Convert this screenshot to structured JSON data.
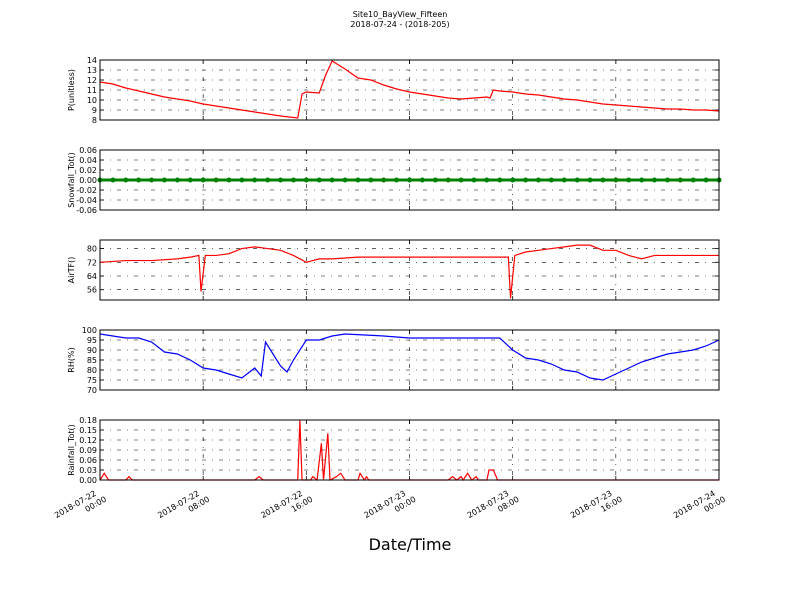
{
  "chart_data": [
    {
      "type": "line",
      "title": "Site10_BayView_Fifteen",
      "subtitle": "2018-07-24 - (2018-205)",
      "ylabel": "P(unitless)",
      "color": "#ff0000",
      "grid": true,
      "ylim": [
        8,
        14
      ],
      "yticks": [
        8,
        9,
        10,
        11,
        12,
        13,
        14
      ],
      "x": [
        "2018-07-22 00:00",
        "2018-07-22 01:00",
        "2018-07-22 02:00",
        "2018-07-22 03:00",
        "2018-07-22 04:00",
        "2018-07-22 05:00",
        "2018-07-22 06:00",
        "2018-07-22 07:00",
        "2018-07-22 08:00",
        "2018-07-22 09:00",
        "2018-07-22 10:00",
        "2018-07-22 11:00",
        "2018-07-22 12:00",
        "2018-07-22 13:00",
        "2018-07-22 14:00",
        "2018-07-22 15:20",
        "2018-07-22 15:40",
        "2018-07-22 16:00",
        "2018-07-22 17:00",
        "2018-07-22 17:30",
        "2018-07-22 18:00",
        "2018-07-22 19:00",
        "2018-07-22 20:00",
        "2018-07-22 21:00",
        "2018-07-22 22:00",
        "2018-07-22 23:00",
        "2018-07-23 00:00",
        "2018-07-23 01:00",
        "2018-07-23 02:00",
        "2018-07-23 03:00",
        "2018-07-23 04:00",
        "2018-07-23 05:00",
        "2018-07-23 06:00",
        "2018-07-23 06:15",
        "2018-07-23 06:30",
        "2018-07-23 07:00",
        "2018-07-23 08:00",
        "2018-07-23 09:00",
        "2018-07-23 10:00",
        "2018-07-23 11:00",
        "2018-07-23 12:00",
        "2018-07-23 13:00",
        "2018-07-23 14:00",
        "2018-07-23 15:00",
        "2018-07-23 16:00",
        "2018-07-23 17:00",
        "2018-07-23 18:00",
        "2018-07-23 19:00",
        "2018-07-23 20:00",
        "2018-07-23 21:00",
        "2018-07-23 22:00",
        "2018-07-23 23:00",
        "2018-07-24 00:00"
      ],
      "values": [
        11.8,
        11.6,
        11.2,
        10.9,
        10.6,
        10.3,
        10.1,
        9.9,
        9.6,
        9.4,
        9.2,
        9.0,
        8.8,
        8.6,
        8.4,
        8.2,
        10.6,
        10.8,
        10.7,
        12.5,
        13.9,
        13.1,
        12.2,
        12.0,
        11.5,
        11.1,
        10.8,
        10.6,
        10.4,
        10.2,
        10.1,
        10.2,
        10.3,
        10.2,
        11.0,
        10.9,
        10.8,
        10.6,
        10.5,
        10.3,
        10.1,
        10.0,
        9.8,
        9.6,
        9.5,
        9.4,
        9.3,
        9.2,
        9.1,
        9.1,
        9.0,
        9.0,
        8.9
      ]
    },
    {
      "type": "line",
      "ylabel": "Snowfall_Tot()",
      "color": "#008000",
      "marker": true,
      "grid": true,
      "ylim": [
        -0.06,
        0.06
      ],
      "yticks": [
        -0.06,
        -0.04,
        -0.02,
        {
          "value": 0,
          "label": "0.00"
        },
        0.02,
        0.04,
        0.06
      ],
      "x": [
        "2018-07-22 00:00",
        "2018-07-22 01:00",
        "2018-07-22 02:00",
        "2018-07-22 03:00",
        "2018-07-22 04:00",
        "2018-07-22 05:00",
        "2018-07-22 06:00",
        "2018-07-22 07:00",
        "2018-07-22 08:00",
        "2018-07-22 09:00",
        "2018-07-22 10:00",
        "2018-07-22 11:00",
        "2018-07-22 12:00",
        "2018-07-22 13:00",
        "2018-07-22 14:00",
        "2018-07-22 15:00",
        "2018-07-22 16:00",
        "2018-07-22 17:00",
        "2018-07-22 18:00",
        "2018-07-22 19:00",
        "2018-07-22 20:00",
        "2018-07-22 21:00",
        "2018-07-22 22:00",
        "2018-07-22 23:00",
        "2018-07-23 00:00",
        "2018-07-23 01:00",
        "2018-07-23 02:00",
        "2018-07-23 03:00",
        "2018-07-23 04:00",
        "2018-07-23 05:00",
        "2018-07-23 06:00",
        "2018-07-23 07:00",
        "2018-07-23 08:00",
        "2018-07-23 09:00",
        "2018-07-23 10:00",
        "2018-07-23 11:00",
        "2018-07-23 12:00",
        "2018-07-23 13:00",
        "2018-07-23 14:00",
        "2018-07-23 15:00",
        "2018-07-23 16:00",
        "2018-07-23 17:00",
        "2018-07-23 18:00",
        "2018-07-23 19:00",
        "2018-07-23 20:00",
        "2018-07-23 21:00",
        "2018-07-23 22:00",
        "2018-07-23 23:00",
        "2018-07-24 00:00"
      ],
      "values": [
        0,
        0,
        0,
        0,
        0,
        0,
        0,
        0,
        0,
        0,
        0,
        0,
        0,
        0,
        0,
        0,
        0,
        0,
        0,
        0,
        0,
        0,
        0,
        0,
        0,
        0,
        0,
        0,
        0,
        0,
        0,
        0,
        0,
        0,
        0,
        0,
        0,
        0,
        0,
        0,
        0,
        0,
        0,
        0,
        0,
        0,
        0,
        0,
        0
      ]
    },
    {
      "type": "line",
      "ylabel": "AirTF()",
      "color": "#ff0000",
      "grid": true,
      "ylim": [
        50,
        85
      ],
      "yticks": [
        56,
        64,
        72,
        80
      ],
      "x": [
        "2018-07-22 00:00",
        "2018-07-22 02:00",
        "2018-07-22 04:00",
        "2018-07-22 06:00",
        "2018-07-22 07:00",
        "2018-07-22 07:40",
        "2018-07-22 07:50",
        "2018-07-22 08:10",
        "2018-07-22 09:00",
        "2018-07-22 10:00",
        "2018-07-22 11:00",
        "2018-07-22 12:00",
        "2018-07-22 13:00",
        "2018-07-22 14:00",
        "2018-07-22 15:00",
        "2018-07-22 16:00",
        "2018-07-22 17:00",
        "2018-07-22 18:00",
        "2018-07-22 20:00",
        "2018-07-22 22:00",
        "2018-07-23 00:00",
        "2018-07-23 04:00",
        "2018-07-23 06:00",
        "2018-07-23 07:40",
        "2018-07-23 07:50",
        "2018-07-23 08:10",
        "2018-07-23 09:00",
        "2018-07-23 10:00",
        "2018-07-23 11:00",
        "2018-07-23 12:00",
        "2018-07-23 13:00",
        "2018-07-23 14:00",
        "2018-07-23 15:00",
        "2018-07-23 16:00",
        "2018-07-23 17:00",
        "2018-07-23 18:00",
        "2018-07-23 19:00",
        "2018-07-23 20:00",
        "2018-07-23 22:00",
        "2018-07-24 00:00"
      ],
      "values": [
        72,
        73,
        73,
        74,
        75,
        76,
        55,
        76,
        76,
        77,
        80,
        81,
        80,
        79,
        76,
        72,
        74,
        74,
        75,
        75,
        75,
        75,
        75,
        75,
        51,
        76,
        78,
        79,
        80,
        81,
        82,
        82,
        79,
        79,
        76,
        74,
        76,
        76,
        76,
        76
      ]
    },
    {
      "type": "line",
      "ylabel": "RH(%)",
      "color": "#0000ff",
      "grid": true,
      "ylim": [
        70,
        100
      ],
      "yticks": [
        70,
        75,
        80,
        85,
        90,
        95,
        100
      ],
      "x": [
        "2018-07-22 00:00",
        "2018-07-22 02:00",
        "2018-07-22 03:00",
        "2018-07-22 04:00",
        "2018-07-22 05:00",
        "2018-07-22 06:00",
        "2018-07-22 07:00",
        "2018-07-22 08:00",
        "2018-07-22 09:00",
        "2018-07-22 10:00",
        "2018-07-22 11:00",
        "2018-07-22 12:00",
        "2018-07-22 12:30",
        "2018-07-22 12:50",
        "2018-07-22 14:00",
        "2018-07-22 14:30",
        "2018-07-22 15:00",
        "2018-07-22 16:00",
        "2018-07-22 17:00",
        "2018-07-22 18:00",
        "2018-07-22 19:00",
        "2018-07-22 22:00",
        "2018-07-23 00:00",
        "2018-07-23 02:00",
        "2018-07-23 04:00",
        "2018-07-23 06:00",
        "2018-07-23 07:00",
        "2018-07-23 08:00",
        "2018-07-23 09:00",
        "2018-07-23 10:00",
        "2018-07-23 11:00",
        "2018-07-23 12:00",
        "2018-07-23 13:00",
        "2018-07-23 14:00",
        "2018-07-23 15:00",
        "2018-07-23 16:00",
        "2018-07-23 17:00",
        "2018-07-23 18:00",
        "2018-07-23 19:00",
        "2018-07-23 20:00",
        "2018-07-23 21:00",
        "2018-07-23 22:00",
        "2018-07-23 23:00",
        "2018-07-24 00:00"
      ],
      "values": [
        98,
        96,
        96,
        94,
        89,
        88,
        85,
        81,
        80,
        78,
        76,
        81,
        77,
        94,
        82,
        79,
        85,
        95,
        95,
        97,
        98,
        97,
        96,
        96,
        96,
        96,
        96,
        90,
        86,
        85,
        83,
        80,
        79,
        76,
        75,
        78,
        81,
        84,
        86,
        88,
        89,
        90,
        92,
        95
      ]
    },
    {
      "type": "line",
      "ylabel": "Rainfall_Tot()",
      "xlabel": "Date/Time",
      "color": "#ff0000",
      "grid": true,
      "ylim": [
        0,
        0.18
      ],
      "yticks": [
        {
          "value": 0,
          "label": "0.00"
        },
        0.03,
        0.06,
        0.09,
        0.12,
        0.15,
        0.18
      ],
      "xlim": [
        "2018-07-22 00:00",
        "2018-07-24 00:00"
      ],
      "xticks": [
        "2018-07-22 00:00",
        "2018-07-22 08:00",
        "2018-07-22 16:00",
        "2018-07-23 00:00",
        "2018-07-23 08:00",
        "2018-07-23 16:00",
        "2018-07-24 00:00"
      ],
      "x": [
        "2018-07-22 00:00",
        "2018-07-22 00:20",
        "2018-07-22 00:40",
        "2018-07-22 02:00",
        "2018-07-22 02:15",
        "2018-07-22 02:30",
        "2018-07-22 12:00",
        "2018-07-22 12:20",
        "2018-07-22 12:40",
        "2018-07-22 15:20",
        "2018-07-22 15:30",
        "2018-07-22 15:40",
        "2018-07-22 16:20",
        "2018-07-22 16:30",
        "2018-07-22 16:50",
        "2018-07-22 17:10",
        "2018-07-22 17:20",
        "2018-07-22 17:40",
        "2018-07-22 17:50",
        "2018-07-22 18:20",
        "2018-07-22 18:40",
        "2018-07-22 19:00",
        "2018-07-22 20:00",
        "2018-07-22 20:10",
        "2018-07-22 20:30",
        "2018-07-22 20:40",
        "2018-07-22 20:50",
        "2018-07-23 03:00",
        "2018-07-23 03:20",
        "2018-07-23 03:40",
        "2018-07-23 04:00",
        "2018-07-23 04:10",
        "2018-07-23 04:30",
        "2018-07-23 04:50",
        "2018-07-23 05:10",
        "2018-07-23 05:20",
        "2018-07-23 06:00",
        "2018-07-23 06:10",
        "2018-07-23 06:30",
        "2018-07-23 06:50",
        "2018-07-24 00:00"
      ],
      "values": [
        0,
        0.02,
        0,
        0,
        0.01,
        0,
        0,
        0.01,
        0,
        0,
        0.18,
        0,
        0,
        0.01,
        0,
        0.11,
        0,
        0.14,
        0,
        0.01,
        0.02,
        0,
        0,
        0.02,
        0,
        0.01,
        0,
        0,
        0.01,
        0,
        0.01,
        0,
        0.02,
        0,
        0.01,
        0,
        0,
        0.03,
        0.03,
        0,
        0
      ]
    }
  ]
}
